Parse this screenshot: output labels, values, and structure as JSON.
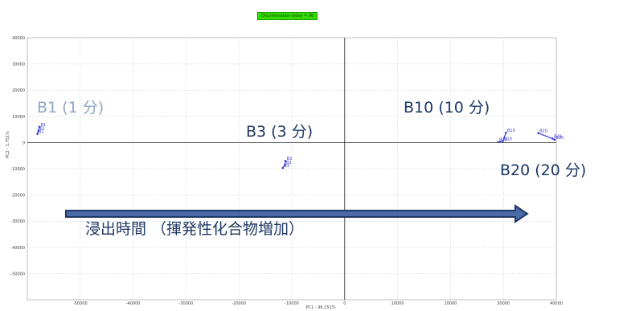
{
  "badge": "Discrimination index = 96",
  "chart_data": {
    "type": "scatter",
    "xlabel": "PC1 - 96.151%",
    "ylabel": "PC2 - 1.751%",
    "xlim": [
      -60000,
      40000
    ],
    "ylim": [
      -60000,
      40000
    ],
    "grid": true,
    "x_ticks": [
      -50000,
      -40000,
      -30000,
      -20000,
      -10000,
      0,
      10000,
      20000,
      30000,
      40000
    ],
    "y_ticks": [
      40000,
      30000,
      20000,
      10000,
      0,
      -10000,
      -20000,
      -30000,
      -40000,
      -50000
    ],
    "series": [
      {
        "name": "B1",
        "points": [
          {
            "x": -57700,
            "y": 6000,
            "label": "B1"
          },
          {
            "x": -57900,
            "y": 4500,
            "label": "B1"
          },
          {
            "x": -58100,
            "y": 3300,
            "label": "B1"
          }
        ]
      },
      {
        "name": "B3",
        "points": [
          {
            "x": -11200,
            "y": -7000,
            "label": "B3"
          },
          {
            "x": -11300,
            "y": -8500,
            "label": "B3"
          },
          {
            "x": -11700,
            "y": -9700,
            "label": "B3"
          }
        ]
      },
      {
        "name": "B10",
        "points": [
          {
            "x": 30500,
            "y": 3800,
            "label": "B10"
          },
          {
            "x": 29900,
            "y": 600,
            "label": "B10"
          },
          {
            "x": 29000,
            "y": 200,
            "label": "B10"
          }
        ]
      },
      {
        "name": "B20",
        "points": [
          {
            "x": 36600,
            "y": 3600,
            "label": "B20"
          },
          {
            "x": 39300,
            "y": 1500,
            "label": "B20"
          },
          {
            "x": 39700,
            "y": 1100,
            "label": "B20"
          }
        ]
      }
    ]
  },
  "annotations": {
    "b1": "B1 (1 分)",
    "b3": "B3 (3 分)",
    "b10": "B10 (10 分)",
    "b20": "B20 (20 分)",
    "arrow_caption": "浸出時間 （揮発性化合物増加）"
  },
  "colors": {
    "points": "#3c3ccc",
    "annotation": "#1f3864",
    "annotation_light": "#8ea5c9",
    "arrow_fill": "#4a6aa8",
    "arrow_stroke": "#1f3864",
    "badge": "#33dd00"
  }
}
